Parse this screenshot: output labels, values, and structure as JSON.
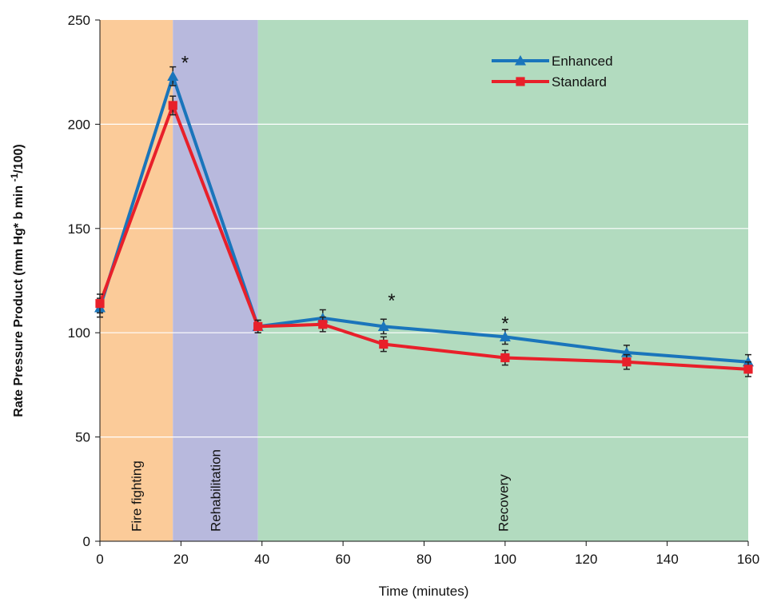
{
  "chart_data": {
    "type": "line",
    "xlabel": "Time (minutes)",
    "ylabel_parts": [
      "Rate Pressure Product (mm Hg* b min ",
      "-1",
      "/100)"
    ],
    "x": [
      0,
      18,
      39,
      55,
      70,
      100,
      130,
      160
    ],
    "series": [
      {
        "name": "Enhanced",
        "color": "#1a75bb",
        "marker": "triangle",
        "values": [
          112,
          223,
          103,
          107,
          103,
          98,
          90.5,
          86
        ],
        "errors": [
          4.5,
          4.5,
          3,
          4,
          3.5,
          3.5,
          3.5,
          3.5
        ]
      },
      {
        "name": "Standard",
        "color": "#e8202a",
        "marker": "square",
        "values": [
          114,
          209,
          103,
          104,
          94.5,
          88,
          86,
          82.5
        ],
        "errors": [
          4.5,
          4.5,
          3,
          3.5,
          3.5,
          3.5,
          3.5,
          3.5
        ]
      }
    ],
    "regions": [
      {
        "label": "Fire fighting",
        "start": 0,
        "end": 18,
        "color": "#fbcb99"
      },
      {
        "label": "Rehabilitation",
        "start": 18,
        "end": 39,
        "color": "#b8b9dd"
      },
      {
        "label": "Recovery",
        "start": 39,
        "end": 160,
        "color": "#b2dbbf"
      }
    ],
    "annotations": [
      {
        "text": "*",
        "x": 21,
        "y": 231
      },
      {
        "text": "*",
        "x": 72,
        "y": 117
      },
      {
        "text": "*",
        "x": 100,
        "y": 106
      }
    ],
    "xlim": [
      0,
      160
    ],
    "xticks": [
      0,
      20,
      40,
      60,
      80,
      100,
      120,
      140,
      160
    ],
    "ylim": [
      0,
      250
    ],
    "yticks": [
      0,
      50,
      100,
      150,
      200,
      250
    ],
    "grid": true,
    "legend": "upper right"
  }
}
